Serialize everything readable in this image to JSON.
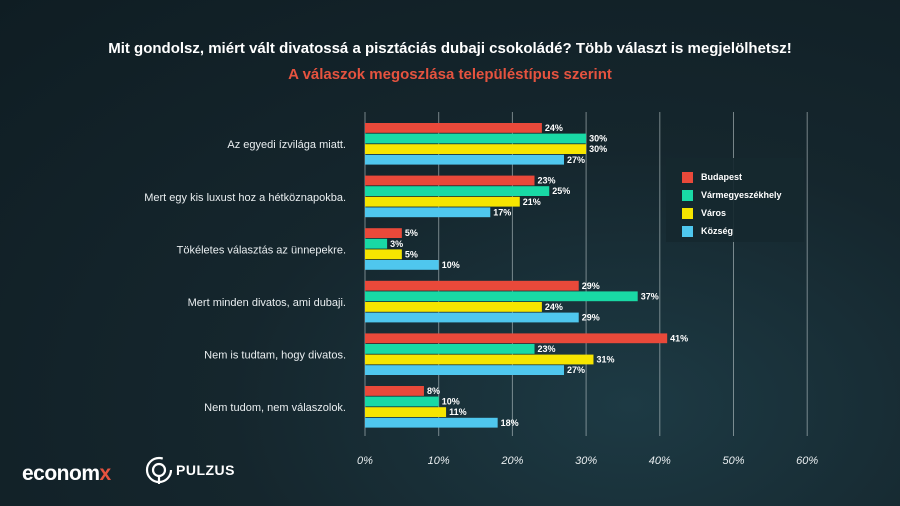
{
  "header": {
    "title": "Mit gondolsz, miért vált divatossá a pisztáciás dubaji csokoládé? Több választ is megjelölhetsz!",
    "subtitle": "A válaszok megoszlása településtípus szerint"
  },
  "colors": {
    "Budapest": "#e9493a",
    "Vármegyeszékhely": "#19d9a5",
    "Város": "#f6e500",
    "Község": "#4fc7ee"
  },
  "chart_data": {
    "type": "bar",
    "orientation": "horizontal",
    "title": "Mit gondolsz, miért vált divatossá a pisztáciás dubaji csokoládé? Több választ is megjelölhetsz!",
    "subtitle": "A válaszok megoszlása településtípus szerint",
    "categories": [
      "Az egyedi ízvilága miatt.",
      "Mert egy kis luxust hoz a hétköznapokba.",
      "Tökéletes választás az ünnepekre.",
      "Mert minden divatos, ami dubaji.",
      "Nem is tudtam, hogy divatos.",
      "Nem tudom, nem válaszolok."
    ],
    "series": [
      {
        "name": "Budapest",
        "values": [
          24,
          23,
          5,
          29,
          41,
          8
        ]
      },
      {
        "name": "Vármegyeszékhely",
        "values": [
          30,
          25,
          3,
          37,
          23,
          10
        ]
      },
      {
        "name": "Város",
        "values": [
          30,
          21,
          5,
          24,
          31,
          11
        ]
      },
      {
        "name": "Község",
        "values": [
          27,
          17,
          10,
          29,
          27,
          18
        ]
      }
    ],
    "xlim": [
      0,
      60
    ],
    "ticks": [
      "0%",
      "10%",
      "20%",
      "30%",
      "40%",
      "50%",
      "60%"
    ],
    "value_suffix": "%",
    "grid": true,
    "legend_position": "right"
  },
  "legend": {
    "items": [
      "Budapest",
      "Vármegyeszékhely",
      "Város",
      "Község"
    ]
  },
  "branding": {
    "logo_left": "econom",
    "logo_left_x": "x",
    "logo_right": "PULZUS"
  }
}
